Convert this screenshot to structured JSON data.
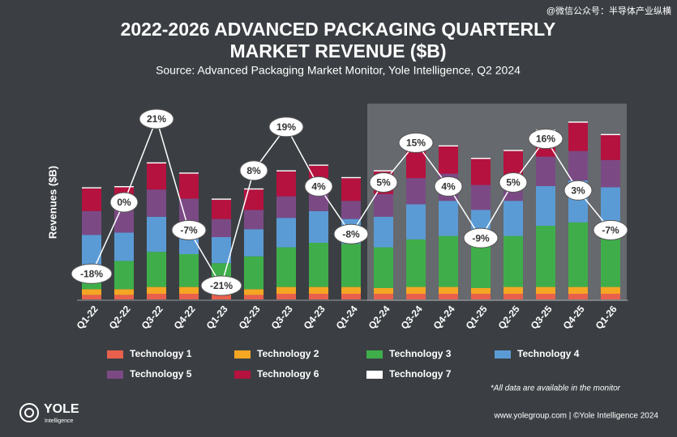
{
  "chart_data": {
    "type": "bar",
    "stacked": true,
    "title": [
      "2022-2026 ADVANCED PACKAGING QUARTERLY",
      "MARKET REVENUE ($B)"
    ],
    "subtitle": "Source: Advanced Packaging Market Monitor, Yole Intelligence, Q2 2024",
    "y_label": "Revenues ($B)",
    "categories": [
      "Q1-22",
      "Q2-22",
      "Q3-22",
      "Q4-22",
      "Q1-23",
      "Q2-23",
      "Q3-23",
      "Q4-23",
      "Q1-24",
      "Q2-24",
      "Q3-24",
      "Q4-24",
      "Q1-25",
      "Q2-25",
      "Q3-25",
      "Q4-25",
      "Q1-26"
    ],
    "series": [
      {
        "name": "Technology 1",
        "color": "#e8604c",
        "values": [
          0.4,
          0.4,
          0.5,
          0.5,
          0.4,
          0.4,
          0.5,
          0.5,
          0.5,
          0.5,
          0.5,
          0.5,
          0.5,
          0.5,
          0.5,
          0.5,
          0.5
        ]
      },
      {
        "name": "Technology 2",
        "color": "#f5a623",
        "values": [
          0.5,
          0.5,
          0.6,
          0.6,
          0.5,
          0.5,
          0.6,
          0.6,
          0.6,
          0.5,
          0.6,
          0.6,
          0.5,
          0.6,
          0.6,
          0.6,
          0.6
        ]
      },
      {
        "name": "Technology 3",
        "color": "#3fae4a",
        "values": [
          2.1,
          2.5,
          3.1,
          2.9,
          2.3,
          2.9,
          3.5,
          3.9,
          3.8,
          3.6,
          4.2,
          4.5,
          4.3,
          4.5,
          5.4,
          5.7,
          5.1
        ]
      },
      {
        "name": "Technology 4",
        "color": "#5b9bd5",
        "values": [
          2.7,
          2.5,
          3.1,
          2.6,
          2.3,
          2.4,
          2.6,
          2.8,
          2.2,
          2.7,
          3.1,
          3.1,
          2.6,
          3.1,
          3.5,
          3.7,
          3.7
        ]
      },
      {
        "name": "Technology 5",
        "color": "#7b4a85",
        "values": [
          2.1,
          2.0,
          2.4,
          2.3,
          1.6,
          1.7,
          1.9,
          1.5,
          1.6,
          2.0,
          2.3,
          2.4,
          2.2,
          2.2,
          2.6,
          2.6,
          2.4
        ]
      },
      {
        "name": "Technology 6",
        "color": "#b5123f",
        "values": [
          2.0,
          2.0,
          2.3,
          2.2,
          1.7,
          1.8,
          2.2,
          2.5,
          2.0,
          2.0,
          2.4,
          2.4,
          2.3,
          2.2,
          2.3,
          2.5,
          2.2
        ]
      },
      {
        "name": "Technology 7",
        "color": "#ffffff",
        "values": [
          0.1,
          0.1,
          0.1,
          0.1,
          0.1,
          0.1,
          0.1,
          0.1,
          0.1,
          0.1,
          0.1,
          0.1,
          0.1,
          0.1,
          0.1,
          0.1,
          0.1
        ]
      }
    ],
    "line": {
      "color": "#ffffff",
      "values": [
        -18,
        0,
        21,
        -7,
        -21,
        8,
        19,
        4,
        -8,
        5,
        15,
        4,
        -9,
        5,
        16,
        3,
        -7
      ],
      "value_labels": [
        "-18%",
        "0%",
        "21%",
        "-7%",
        "-21%",
        "8%",
        "19%",
        "4%",
        "-8%",
        "5%",
        "15%",
        "4%",
        "-9%",
        "5%",
        "16%",
        "3%",
        "-7%"
      ]
    },
    "footnote": "*All data are available in the monitor",
    "credit": "www.yolegroup.com | ©Yole Intelligence 2024",
    "logo": "YOLE",
    "logo_sub": "Intelligence",
    "watermark": "@微信公众号：半导体产业纵横"
  }
}
